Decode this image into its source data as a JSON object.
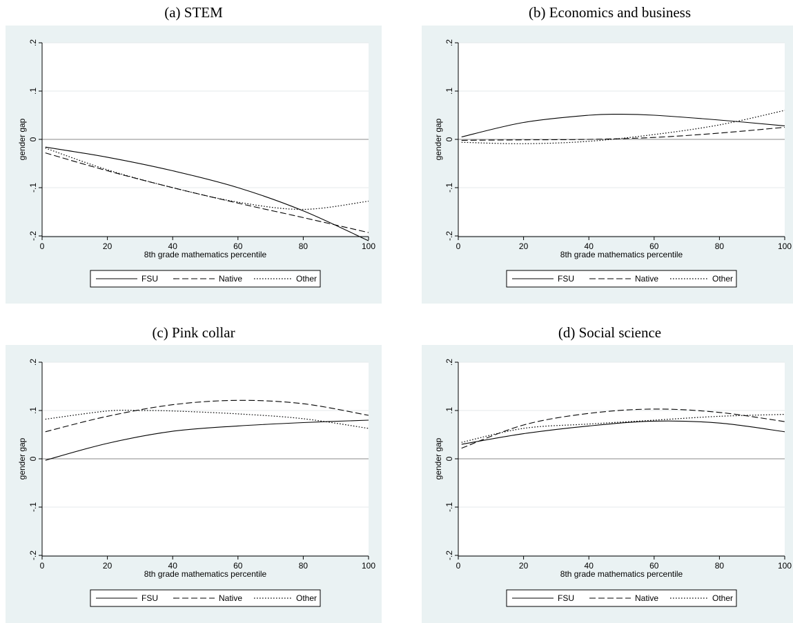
{
  "chart_data": [
    {
      "type": "line",
      "title": "(a) STEM",
      "xlabel": "8th grade mathematics percentile",
      "ylabel": "gender gap",
      "xlim": [
        0,
        100
      ],
      "ylim": [
        -0.2,
        0.2
      ],
      "xticks": [
        "0",
        "20",
        "40",
        "60",
        "80",
        "100"
      ],
      "yticks": [
        "-.2",
        "-.1",
        "0",
        ".1",
        ".2"
      ],
      "grid": true,
      "legend": "bottom",
      "series": [
        {
          "name": "FSU",
          "style": "solid",
          "x": [
            1,
            20,
            40,
            60,
            80,
            100
          ],
          "y": [
            -0.016,
            -0.037,
            -0.065,
            -0.1,
            -0.148,
            -0.21
          ]
        },
        {
          "name": "Native",
          "style": "dashed",
          "x": [
            1,
            20,
            40,
            60,
            80,
            100
          ],
          "y": [
            -0.028,
            -0.065,
            -0.1,
            -0.132,
            -0.162,
            -0.193
          ]
        },
        {
          "name": "Other",
          "style": "dotted",
          "x": [
            1,
            20,
            40,
            60,
            80,
            100
          ],
          "y": [
            -0.018,
            -0.063,
            -0.1,
            -0.13,
            -0.145,
            -0.128
          ]
        }
      ]
    },
    {
      "type": "line",
      "title": "(b) Economics and business",
      "xlabel": "8th grade mathematics percentile",
      "ylabel": "gender gap",
      "xlim": [
        0,
        100
      ],
      "ylim": [
        -0.2,
        0.2
      ],
      "xticks": [
        "0",
        "20",
        "40",
        "60",
        "80",
        "100"
      ],
      "yticks": [
        "-.2",
        "-.1",
        "0",
        ".1",
        ".2"
      ],
      "grid": true,
      "legend": "bottom",
      "series": [
        {
          "name": "FSU",
          "style": "solid",
          "x": [
            1,
            20,
            40,
            50,
            60,
            80,
            100
          ],
          "y": [
            0.005,
            0.035,
            0.05,
            0.052,
            0.05,
            0.04,
            0.028
          ]
        },
        {
          "name": "Native",
          "style": "dashed",
          "x": [
            1,
            20,
            40,
            60,
            80,
            100
          ],
          "y": [
            -0.002,
            -0.001,
            0.0,
            0.004,
            0.013,
            0.025
          ]
        },
        {
          "name": "Other",
          "style": "dotted",
          "x": [
            1,
            20,
            40,
            60,
            80,
            100
          ],
          "y": [
            -0.006,
            -0.009,
            -0.004,
            0.01,
            0.03,
            0.06
          ]
        }
      ]
    },
    {
      "type": "line",
      "title": "(c) Pink collar",
      "xlabel": "8th grade mathematics percentile",
      "ylabel": "gender gap",
      "xlim": [
        0,
        100
      ],
      "ylim": [
        -0.2,
        0.2
      ],
      "xticks": [
        "0",
        "20",
        "40",
        "60",
        "80",
        "100"
      ],
      "yticks": [
        "-.2",
        "-.1",
        "0",
        ".1",
        ".2"
      ],
      "grid": true,
      "legend": "bottom",
      "series": [
        {
          "name": "FSU",
          "style": "solid",
          "x": [
            1,
            20,
            40,
            60,
            80,
            100
          ],
          "y": [
            -0.003,
            0.032,
            0.057,
            0.068,
            0.075,
            0.08
          ]
        },
        {
          "name": "Native",
          "style": "dashed",
          "x": [
            1,
            20,
            40,
            60,
            80,
            100
          ],
          "y": [
            0.056,
            0.088,
            0.112,
            0.121,
            0.114,
            0.09
          ]
        },
        {
          "name": "Other",
          "style": "dotted",
          "x": [
            1,
            20,
            30,
            40,
            60,
            80,
            100
          ],
          "y": [
            0.082,
            0.099,
            0.1,
            0.099,
            0.093,
            0.083,
            0.063
          ]
        }
      ]
    },
    {
      "type": "line",
      "title": "(d) Social science",
      "xlabel": "8th grade mathematics percentile",
      "ylabel": "gender gap",
      "xlim": [
        0,
        100
      ],
      "ylim": [
        -0.2,
        0.2
      ],
      "xticks": [
        "0",
        "20",
        "40",
        "60",
        "80",
        "100"
      ],
      "yticks": [
        "-.2",
        "-.1",
        "0",
        ".1",
        ".2"
      ],
      "grid": true,
      "legend": "bottom",
      "series": [
        {
          "name": "FSU",
          "style": "solid",
          "x": [
            1,
            20,
            40,
            60,
            80,
            100
          ],
          "y": [
            0.03,
            0.052,
            0.068,
            0.078,
            0.074,
            0.056
          ]
        },
        {
          "name": "Native",
          "style": "dashed",
          "x": [
            1,
            20,
            40,
            60,
            80,
            100
          ],
          "y": [
            0.022,
            0.07,
            0.094,
            0.103,
            0.096,
            0.077
          ]
        },
        {
          "name": "Other",
          "style": "dotted",
          "x": [
            1,
            20,
            40,
            60,
            80,
            100
          ],
          "y": [
            0.034,
            0.063,
            0.072,
            0.08,
            0.088,
            0.092
          ]
        }
      ]
    }
  ]
}
